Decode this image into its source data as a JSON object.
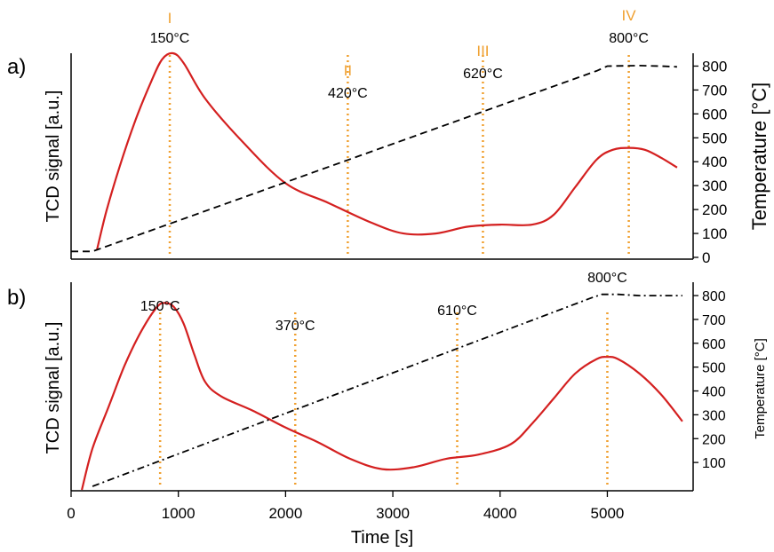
{
  "colors": {
    "tcd": "#d42020",
    "marker": "#f0a030",
    "numeral": "#f0a030",
    "temp": "#000000",
    "axis": "#000000"
  },
  "xaxis": {
    "label": "Time [s]",
    "ticks": [
      0,
      1000,
      2000,
      3000,
      4000,
      5000
    ],
    "tick_labels": [
      "0",
      "1000",
      "2000",
      "3000",
      "4000",
      "5000"
    ],
    "range": [
      0,
      5800
    ]
  },
  "chart_data": [
    {
      "type": "line",
      "panel_label": "a)",
      "ylabel_left": "TCD signal [a.u.]",
      "ylabel_right": "Temperature [°C]",
      "right_ticks": [
        0,
        100,
        200,
        300,
        400,
        500,
        600,
        700,
        800
      ],
      "right_tick_labels": [
        "0",
        "100",
        "200",
        "300",
        "400",
        "500",
        "600",
        "700",
        "800"
      ],
      "right_range": [
        0,
        850
      ],
      "grid": false,
      "series": [
        {
          "role": "tcd",
          "style": "solid",
          "axis": "left",
          "x": [
            240,
            330,
            450,
            600,
            750,
            850,
            950,
            1050,
            1250,
            1600,
            2000,
            2400,
            2800,
            3100,
            3400,
            3700,
            4000,
            4300,
            4500,
            4700,
            4900,
            5050,
            5200,
            5350,
            5500,
            5650
          ],
          "y": [
            0.0,
            0.2,
            0.42,
            0.66,
            0.86,
            0.97,
            1.0,
            0.95,
            0.77,
            0.55,
            0.34,
            0.24,
            0.14,
            0.085,
            0.085,
            0.12,
            0.13,
            0.13,
            0.18,
            0.32,
            0.46,
            0.51,
            0.52,
            0.51,
            0.47,
            0.42
          ]
        },
        {
          "role": "temperature",
          "style": "dashed",
          "axis": "right",
          "x": [
            0,
            200,
            4900,
            5000,
            5300,
            5500,
            5650
          ],
          "y": [
            25,
            25,
            780,
            800,
            802,
            800,
            797
          ]
        }
      ],
      "annotations": [
        {
          "numeral": "I",
          "temp_label": "150°C",
          "x": 920
        },
        {
          "numeral": "II",
          "temp_label": "420°C",
          "x": 2580
        },
        {
          "numeral": "III",
          "temp_label": "620°C",
          "x": 3840
        },
        {
          "numeral": "IV",
          "temp_label": "800°C",
          "x": 5200
        }
      ]
    },
    {
      "type": "line",
      "panel_label": "b)",
      "ylabel_left": "TCD signal [a.u.]",
      "ylabel_right": "Temperature [°C]",
      "right_ticks": [
        100,
        200,
        300,
        400,
        500,
        600,
        700,
        800
      ],
      "right_tick_labels": [
        "100",
        "200",
        "300",
        "400",
        "500",
        "600",
        "700",
        "800"
      ],
      "right_range": [
        0,
        830
      ],
      "grid": false,
      "series": [
        {
          "role": "tcd",
          "style": "solid",
          "axis": "left",
          "x": [
            100,
            200,
            350,
            500,
            650,
            800,
            880,
            960,
            1050,
            1150,
            1250,
            1400,
            1700,
            2000,
            2300,
            2600,
            2900,
            3200,
            3500,
            3800,
            4100,
            4300,
            4500,
            4700,
            4900,
            5000,
            5100,
            5300,
            5500,
            5700
          ],
          "y": [
            0.0,
            0.2,
            0.4,
            0.6,
            0.76,
            0.88,
            0.9,
            0.88,
            0.8,
            0.65,
            0.52,
            0.45,
            0.38,
            0.3,
            0.23,
            0.15,
            0.1,
            0.11,
            0.15,
            0.17,
            0.22,
            0.32,
            0.44,
            0.56,
            0.63,
            0.64,
            0.63,
            0.56,
            0.46,
            0.33
          ]
        },
        {
          "role": "temperature",
          "style": "dashdot",
          "axis": "right",
          "x": [
            200,
            4850,
            4950,
            5100,
            5300,
            5700
          ],
          "y": [
            0,
            790,
            805,
            805,
            800,
            800
          ]
        }
      ],
      "annotations": [
        {
          "numeral": "",
          "temp_label": "150°C",
          "x": 830
        },
        {
          "numeral": "",
          "temp_label": "370°C",
          "x": 2090
        },
        {
          "numeral": "",
          "temp_label": "610°C",
          "x": 3600
        },
        {
          "numeral": "",
          "temp_label": "800°C",
          "x": 5000
        }
      ]
    }
  ]
}
